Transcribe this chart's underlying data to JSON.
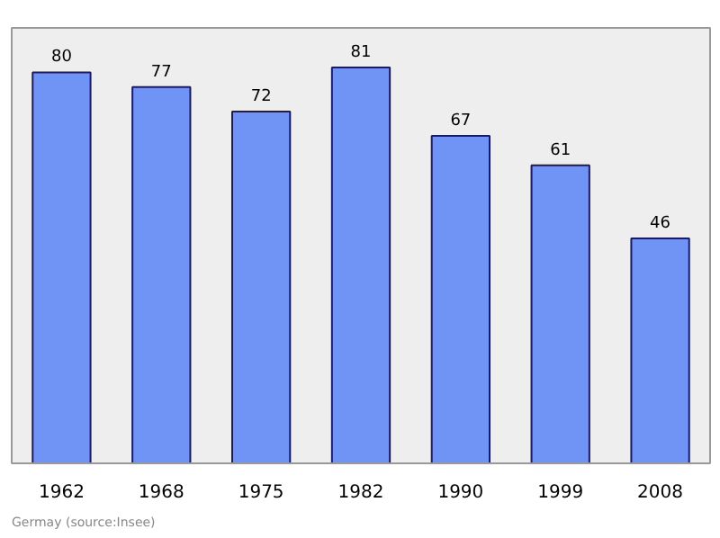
{
  "chart_data": {
    "type": "bar",
    "categories": [
      "1962",
      "1968",
      "1975",
      "1982",
      "1990",
      "1999",
      "2008"
    ],
    "values": [
      80,
      77,
      72,
      81,
      67,
      61,
      46
    ],
    "color": "#7094f5",
    "data_labels": true,
    "grid": false,
    "annotations": [
      "Germay    (source:Insee)"
    ]
  }
}
